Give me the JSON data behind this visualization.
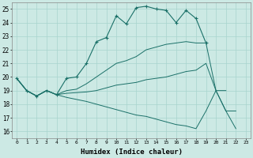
{
  "xlabel": "Humidex (Indice chaleur)",
  "xlim": [
    -0.5,
    23.5
  ],
  "ylim": [
    15.5,
    25.5
  ],
  "xticks": [
    0,
    1,
    2,
    3,
    4,
    5,
    6,
    7,
    8,
    9,
    10,
    11,
    12,
    13,
    14,
    15,
    16,
    17,
    18,
    19,
    20,
    21,
    22,
    23
  ],
  "yticks": [
    16,
    17,
    18,
    19,
    20,
    21,
    22,
    23,
    24,
    25
  ],
  "background_color": "#cce9e4",
  "grid_color": "#a8d4ce",
  "line_color": "#1a7068",
  "line1_x": [
    0,
    1,
    2,
    3,
    4,
    5,
    6,
    7,
    8,
    9,
    10,
    11,
    12,
    13,
    14,
    15,
    16,
    17,
    18,
    19
  ],
  "line1_y": [
    19.9,
    19.0,
    18.6,
    19.0,
    18.7,
    19.9,
    20.0,
    21.0,
    22.6,
    22.9,
    24.5,
    23.9,
    25.1,
    25.2,
    25.0,
    24.9,
    24.0,
    24.9,
    24.3,
    22.5
  ],
  "line2_x": [
    0,
    1,
    2,
    3,
    4,
    5,
    6,
    7,
    8,
    9,
    10,
    11,
    12,
    13,
    14,
    15,
    16,
    17,
    18,
    19,
    20,
    21
  ],
  "line2_y": [
    19.9,
    19.0,
    18.6,
    19.0,
    18.7,
    19.0,
    19.1,
    19.5,
    20.0,
    20.5,
    21.0,
    21.2,
    21.5,
    22.0,
    22.2,
    22.4,
    22.5,
    22.6,
    22.5,
    22.5,
    19.0,
    19.0
  ],
  "line3_x": [
    0,
    1,
    2,
    3,
    4,
    5,
    6,
    7,
    8,
    9,
    10,
    11,
    12,
    13,
    14,
    15,
    16,
    17,
    18,
    19,
    20,
    21,
    22
  ],
  "line3_y": [
    19.9,
    19.0,
    18.6,
    19.0,
    18.7,
    18.8,
    18.85,
    18.9,
    19.0,
    19.2,
    19.4,
    19.5,
    19.6,
    19.8,
    19.9,
    20.0,
    20.2,
    20.4,
    20.5,
    21.0,
    19.0,
    17.5,
    17.5
  ],
  "line4_x": [
    0,
    1,
    2,
    3,
    4,
    5,
    6,
    7,
    8,
    9,
    10,
    11,
    12,
    13,
    14,
    15,
    16,
    17,
    18,
    19,
    20,
    21,
    22
  ],
  "line4_y": [
    19.9,
    19.0,
    18.6,
    19.0,
    18.7,
    18.5,
    18.35,
    18.2,
    18.0,
    17.8,
    17.6,
    17.4,
    17.2,
    17.1,
    16.9,
    16.7,
    16.5,
    16.4,
    16.2,
    17.5,
    19.0,
    17.5,
    16.2
  ]
}
